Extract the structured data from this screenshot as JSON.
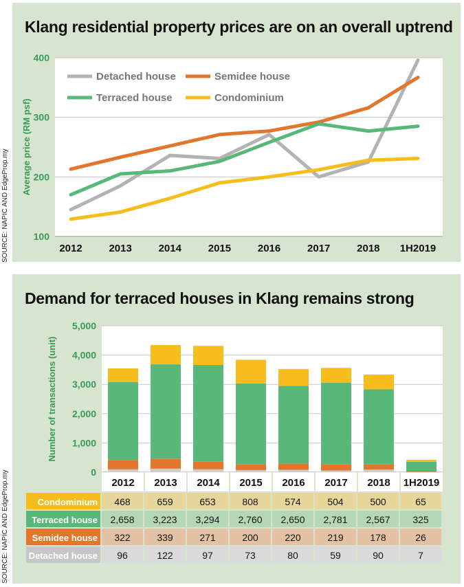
{
  "chart1": {
    "title": "Klang residential property prices are on an overall uptrend",
    "source": "SOURCE: NAPIC AND EdgeProp.my",
    "chart_data": {
      "type": "line",
      "title": "Klang residential property prices are on an overall uptrend",
      "ylabel": "Average price (RM psf)",
      "xlabel": "",
      "ylim": [
        100,
        400
      ],
      "yticks": [
        "100",
        "200",
        "300",
        "400"
      ],
      "grid": true,
      "legend_position": "top-left",
      "categories": [
        "2012",
        "2013",
        "2014",
        "2015",
        "2016",
        "2017",
        "2018",
        "1H2019"
      ],
      "series": [
        {
          "name": "Detached house",
          "color": "#b3b3b3",
          "values": [
            145,
            185,
            236,
            231,
            271,
            200,
            225,
            396
          ]
        },
        {
          "name": "Semidee house",
          "color": "#e2762d",
          "values": [
            213,
            233,
            252,
            271,
            277,
            292,
            316,
            367
          ]
        },
        {
          "name": "Terraced house",
          "color": "#57b87a",
          "values": [
            170,
            205,
            210,
            226,
            258,
            289,
            277,
            285
          ]
        },
        {
          "name": "Condominium",
          "color": "#f7bd1c",
          "values": [
            129,
            141,
            164,
            190,
            200,
            212,
            228,
            231
          ]
        }
      ]
    }
  },
  "chart2": {
    "title": "Demand for terraced houses in Klang remains strong",
    "source": "SOURCE: NAPIC AND EdgeProp.my",
    "chart_data": {
      "type": "bar",
      "stacked": true,
      "title": "Demand for terraced houses in Klang remains strong",
      "ylabel": "Number of transactions (unit)",
      "xlabel": "",
      "ylim": [
        0,
        5000
      ],
      "yticks": [
        "0",
        "1,000",
        "2,000",
        "3,000",
        "4,000",
        "5,000"
      ],
      "grid": true,
      "categories": [
        "2012",
        "2013",
        "2014",
        "2015",
        "2016",
        "2017",
        "2018",
        "1H2019"
      ],
      "series": [
        {
          "name": "Detached house",
          "color": "#cdcdcd",
          "values": [
            96,
            122,
            97,
            73,
            80,
            59,
            90,
            7
          ]
        },
        {
          "name": "Semidee house",
          "color": "#e2762d",
          "values": [
            322,
            339,
            271,
            200,
            220,
            219,
            178,
            26
          ]
        },
        {
          "name": "Terraced house",
          "color": "#57b87a",
          "values": [
            2658,
            3223,
            3294,
            2760,
            2650,
            2781,
            2567,
            325
          ]
        },
        {
          "name": "Condominium",
          "color": "#f7bd1c",
          "values": [
            468,
            659,
            653,
            808,
            574,
            504,
            500,
            65
          ]
        }
      ]
    },
    "table": {
      "rows": [
        {
          "label": "Condominium",
          "label_bg": "#f7bd1c",
          "cell_bg": "#e7d69a",
          "cells": [
            "468",
            "659",
            "653",
            "808",
            "574",
            "504",
            "500",
            "65"
          ]
        },
        {
          "label": "Terraced house",
          "label_bg": "#57b87a",
          "cell_bg": "#b6d7b6",
          "cells": [
            "2,658",
            "3,223",
            "3,294",
            "2,760",
            "2,650",
            "2,781",
            "2,567",
            "325"
          ]
        },
        {
          "label": "Semidee house",
          "label_bg": "#e2762d",
          "cell_bg": "#e3c2a4",
          "cells": [
            "322",
            "339",
            "271",
            "200",
            "220",
            "219",
            "178",
            "26"
          ]
        },
        {
          "label": "Detached house",
          "label_bg": "#c6c6c6",
          "cell_bg": "#dadada",
          "cells": [
            "96",
            "122",
            "97",
            "73",
            "80",
            "59",
            "90",
            "7"
          ]
        }
      ]
    }
  }
}
